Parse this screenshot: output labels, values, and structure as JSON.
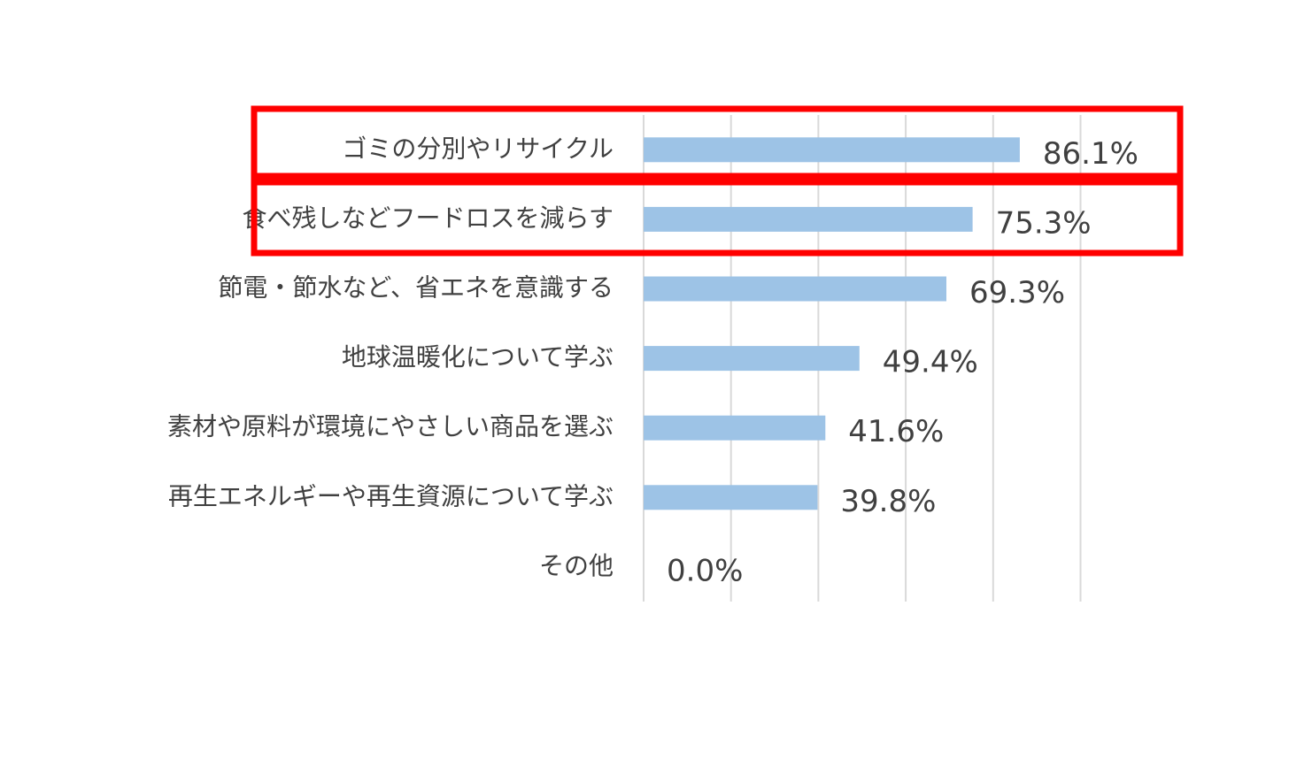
{
  "chart_data": {
    "type": "bar",
    "orientation": "horizontal",
    "categories": [
      "ゴミの分別やリサイクル",
      "食べ残しなどフードロスを減らす",
      "節電・節水など、省エネを意識する",
      "地球温暖化について学ぶ",
      "素材や原料が環境にやさしい商品を選ぶ",
      "再生エネルギーや再生資源について学ぶ",
      "その他"
    ],
    "values": [
      86.1,
      75.3,
      69.3,
      49.4,
      41.6,
      39.8,
      0.0
    ],
    "value_labels": [
      "86.1%",
      "75.3%",
      "69.3%",
      "49.4%",
      "41.6%",
      "39.8%",
      "0.0%"
    ],
    "xlim": [
      0,
      100
    ],
    "grid": true,
    "bar_color": "#9dc3e6",
    "highlight_color": "#ff0000",
    "highlighted_categories": [
      0,
      1
    ]
  }
}
